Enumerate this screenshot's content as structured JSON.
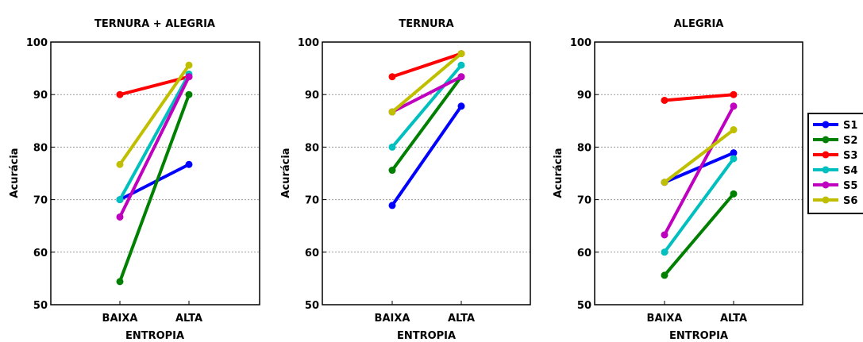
{
  "chart_data": [
    {
      "type": "line",
      "title": "TERNURA + ALEGRIA",
      "xlabel": "ENTROPIA",
      "ylabel": "Acurácia",
      "categories": [
        "BAIXA",
        "ALTA"
      ],
      "ylim": [
        50,
        100
      ],
      "yticks": [
        50,
        60,
        70,
        80,
        90,
        100
      ],
      "grid": true,
      "series": [
        {
          "name": "S1",
          "color": "#0000ff",
          "values": [
            70.0,
            76.7
          ]
        },
        {
          "name": "S2",
          "color": "#008000",
          "values": [
            54.4,
            90.0
          ]
        },
        {
          "name": "S3",
          "color": "#ff0000",
          "values": [
            90.0,
            93.4
          ]
        },
        {
          "name": "S4",
          "color": "#00bfbf",
          "values": [
            70.0,
            93.9
          ]
        },
        {
          "name": "S5",
          "color": "#bf00bf",
          "values": [
            66.7,
            93.4
          ]
        },
        {
          "name": "S6",
          "color": "#bfbf00",
          "values": [
            76.7,
            95.6
          ]
        }
      ]
    },
    {
      "type": "line",
      "title": "TERNURA",
      "xlabel": "ENTROPIA",
      "ylabel": "Acurácia",
      "categories": [
        "BAIXA",
        "ALTA"
      ],
      "ylim": [
        50,
        100
      ],
      "yticks": [
        50,
        60,
        70,
        80,
        90,
        100
      ],
      "grid": true,
      "series": [
        {
          "name": "S1",
          "color": "#0000ff",
          "values": [
            68.9,
            87.8
          ]
        },
        {
          "name": "S2",
          "color": "#008000",
          "values": [
            75.6,
            93.4
          ]
        },
        {
          "name": "S3",
          "color": "#ff0000",
          "values": [
            93.4,
            97.8
          ]
        },
        {
          "name": "S4",
          "color": "#00bfbf",
          "values": [
            80.0,
            95.6
          ]
        },
        {
          "name": "S5",
          "color": "#bf00bf",
          "values": [
            86.7,
            93.4
          ]
        },
        {
          "name": "S6",
          "color": "#bfbf00",
          "values": [
            86.7,
            97.8
          ]
        }
      ]
    },
    {
      "type": "line",
      "title": "ALEGRIA",
      "xlabel": "ENTROPIA",
      "ylabel": "Acurácia",
      "categories": [
        "BAIXA",
        "ALTA"
      ],
      "ylim": [
        50,
        100
      ],
      "yticks": [
        50,
        60,
        70,
        80,
        90,
        100
      ],
      "grid": true,
      "legend": "right",
      "series": [
        {
          "name": "S1",
          "color": "#0000ff",
          "values": [
            73.3,
            78.9
          ]
        },
        {
          "name": "S2",
          "color": "#008000",
          "values": [
            55.6,
            71.1
          ]
        },
        {
          "name": "S3",
          "color": "#ff0000",
          "values": [
            88.9,
            90.0
          ]
        },
        {
          "name": "S4",
          "color": "#00bfbf",
          "values": [
            60.0,
            77.8
          ]
        },
        {
          "name": "S5",
          "color": "#bf00bf",
          "values": [
            63.3,
            87.8
          ]
        },
        {
          "name": "S6",
          "color": "#bfbf00",
          "values": [
            73.3,
            83.3
          ]
        }
      ]
    }
  ],
  "legend": {
    "items": [
      {
        "label": "S1",
        "color": "#0000ff"
      },
      {
        "label": "S2",
        "color": "#008000"
      },
      {
        "label": "S3",
        "color": "#ff0000"
      },
      {
        "label": "S4",
        "color": "#00bfbf"
      },
      {
        "label": "S5",
        "color": "#bf00bf"
      },
      {
        "label": "S6",
        "color": "#bfbf00"
      }
    ]
  }
}
